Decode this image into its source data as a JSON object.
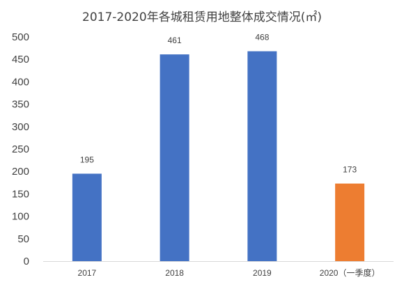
{
  "chart_data": {
    "type": "bar",
    "title": "2017-2020年各城租赁用地整体成交情况(㎡)",
    "categories": [
      "2017",
      "2018",
      "2019",
      "2020（一季度）"
    ],
    "values": [
      195,
      461,
      468,
      173
    ],
    "data_labels": [
      "195",
      "461",
      "468",
      "173"
    ],
    "bar_colors": [
      "#4472c4",
      "#4472c4",
      "#4472c4",
      "#ed7d31"
    ],
    "ylim": [
      0,
      500
    ],
    "yticks": [
      "0",
      "50",
      "100",
      "150",
      "200",
      "250",
      "300",
      "350",
      "400",
      "450",
      "500"
    ],
    "ytick_values": [
      0,
      50,
      100,
      150,
      200,
      250,
      300,
      350,
      400,
      450,
      500
    ],
    "xlabel": "",
    "ylabel": "",
    "grid": false,
    "legend": "none"
  },
  "colors": {
    "axis": "#d9d9d9",
    "text": "#404040"
  }
}
